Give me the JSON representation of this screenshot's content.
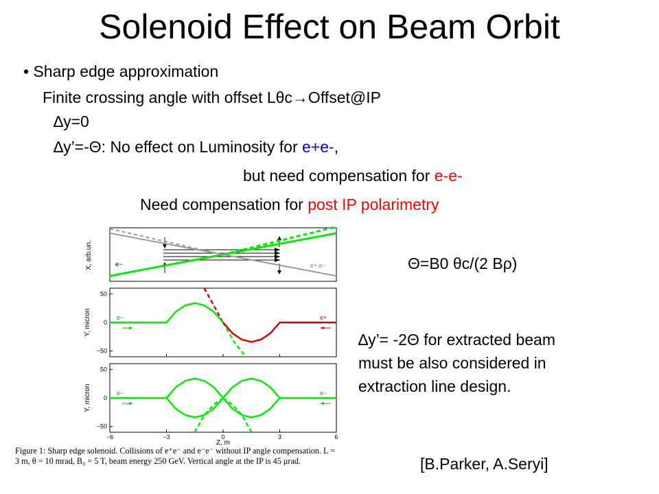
{
  "slide": {
    "title": "Solenoid Effect on Beam Orbit",
    "bullet_marker": "•",
    "bullet_text": "Sharp edge approximation",
    "line2": "Finite crossing angle with offset Lθc→Offset@IP",
    "line3": "∆y=0",
    "line4_pre": "∆y’=-Θ: No effect on Luminosity for ",
    "line4_hl": "e+e-",
    "line4_post": ",",
    "line5_pre": "but need compensation for ",
    "line5_hl": "e-e-",
    "line6_pre": "Need compensation for ",
    "line6_hl": "post IP polarimetry",
    "formula": "Θ=B0 θc/(2 Bρ)",
    "note_line1": "∆y’= -2Θ for extracted beam",
    "note_line2": "must be also considered in",
    "note_line3": "extraction line design.",
    "citation": "[B.Parker, A.Seryi]",
    "caption_line1": "Figure 1: Sharp edge solenoid. Collisions of e⁺e⁻ and e⁻e⁻ without IP angle compensation. L =",
    "caption_line2": "3 m, θ = 10 mrad, B₀ = 5 T, beam energy 250 GeV. Vertical angle at the IP is 45 μrad.",
    "colors": {
      "text": "#000000",
      "highlight_blue": "#0000ff",
      "highlight_red": "#ff0000",
      "beam_green": "#00ee00",
      "beam_red": "#dd0000",
      "beam_gray": "#999999"
    }
  },
  "chart_data": [
    {
      "type": "line",
      "panel": "top",
      "ylabel": "X, arb.un.",
      "xlim": [
        -6,
        6
      ],
      "labels": [
        "e−",
        "e+,e−"
      ],
      "series": [
        {
          "name": "e−",
          "color": "#00ee00",
          "x": [
            -6,
            0,
            6
          ],
          "y": [
            0.1,
            0.5,
            0.9
          ]
        },
        {
          "name": "e+,e−",
          "color": "#999999",
          "x": [
            -6,
            0,
            6
          ],
          "y": [
            0.9,
            0.5,
            0.1
          ]
        }
      ]
    },
    {
      "type": "line",
      "panel": "middle",
      "ylabel": "Y, micron",
      "xlim": [
        -6,
        6
      ],
      "ylim": [
        -60,
        60
      ],
      "yticks": [
        50,
        0,
        -50
      ],
      "labels": [
        "e−",
        "e+"
      ],
      "series": [
        {
          "name": "e−",
          "color": "#00ee00",
          "x": [
            -6,
            -3,
            -2.5,
            -2,
            -1.5,
            -1,
            -0.5,
            0
          ],
          "y": [
            0,
            0,
            19,
            30,
            34,
            30,
            19,
            0
          ]
        },
        {
          "name": "e+",
          "color": "#dd0000",
          "x": [
            0,
            0.5,
            1,
            1.5,
            2,
            2.5,
            3,
            6
          ],
          "y": [
            0,
            -19,
            -30,
            -34,
            -30,
            -19,
            0,
            0
          ]
        }
      ]
    },
    {
      "type": "line",
      "panel": "bottom",
      "ylabel": "Y, micron",
      "xlabel": "Z, m",
      "xlim": [
        -6,
        6
      ],
      "ylim": [
        -60,
        60
      ],
      "xticks": [
        -6,
        -3,
        0,
        3,
        6
      ],
      "yticks": [
        50,
        0,
        -50
      ],
      "labels": [
        "e−",
        "e−"
      ],
      "series": [
        {
          "name": "e−",
          "color": "#00ee00",
          "x": [
            -6,
            -3,
            -2.5,
            -2,
            -1.5,
            -1,
            -0.5,
            0,
            0.5,
            1,
            1.5,
            2,
            2.5,
            3
          ],
          "y": [
            0,
            0,
            19,
            30,
            34,
            30,
            19,
            0,
            -19,
            -30,
            -34,
            -30,
            -19,
            0
          ]
        },
        {
          "name": "e−",
          "color": "#00ee00",
          "x": [
            -3,
            -2.5,
            -2,
            -1.5,
            -1,
            -0.5,
            0,
            0.5,
            1,
            1.5,
            2,
            2.5,
            3,
            6
          ],
          "y": [
            0,
            -19,
            -30,
            -34,
            -30,
            -19,
            0,
            19,
            30,
            34,
            30,
            19,
            0,
            0
          ]
        }
      ]
    }
  ]
}
